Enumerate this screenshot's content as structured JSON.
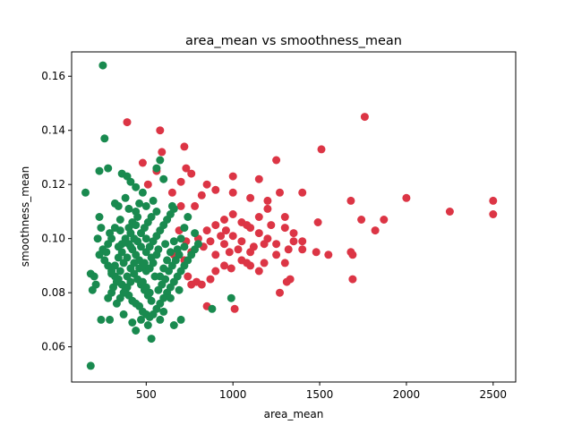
{
  "chart_data": {
    "type": "scatter",
    "title": "area_mean vs smoothness_mean",
    "xlabel": "area_mean",
    "ylabel": "smoothness_mean",
    "xlim": [
      70,
      2630
    ],
    "ylim": [
      0.047,
      0.169
    ],
    "xticks": [
      500,
      1000,
      1500,
      2000,
      2500
    ],
    "yticks": [
      0.06,
      0.08,
      0.1,
      0.12,
      0.14,
      0.16
    ],
    "xtick_labels": [
      "500",
      "1000",
      "1500",
      "2000",
      "2500"
    ],
    "ytick_labels": [
      "0.06",
      "0.08",
      "0.10",
      "0.12",
      "0.14",
      "0.16"
    ],
    "grid": false,
    "legend": "none",
    "series": [
      {
        "color": "#dc3545",
        "points": [
          [
            1760,
            0.145
          ],
          [
            1510,
            0.133
          ],
          [
            720,
            0.134
          ],
          [
            590,
            0.132
          ],
          [
            580,
            0.14
          ],
          [
            390,
            0.143
          ],
          [
            1250,
            0.129
          ],
          [
            480,
            0.128
          ],
          [
            560,
            0.125
          ],
          [
            730,
            0.126
          ],
          [
            760,
            0.124
          ],
          [
            1000,
            0.123
          ],
          [
            1150,
            0.122
          ],
          [
            510,
            0.12
          ],
          [
            700,
            0.121
          ],
          [
            850,
            0.12
          ],
          [
            900,
            0.118
          ],
          [
            1000,
            0.117
          ],
          [
            1100,
            0.115
          ],
          [
            1200,
            0.114
          ],
          [
            1270,
            0.117
          ],
          [
            1400,
            0.117
          ],
          [
            1680,
            0.114
          ],
          [
            2000,
            0.115
          ],
          [
            2500,
            0.114
          ],
          [
            2250,
            0.11
          ],
          [
            2500,
            0.109
          ],
          [
            1870,
            0.107
          ],
          [
            1740,
            0.107
          ],
          [
            1490,
            0.106
          ],
          [
            1820,
            0.103
          ],
          [
            1680,
            0.095
          ],
          [
            1690,
            0.094
          ],
          [
            1690,
            0.085
          ],
          [
            1550,
            0.094
          ],
          [
            1480,
            0.095
          ],
          [
            1400,
            0.096
          ],
          [
            1350,
            0.099
          ],
          [
            1300,
            0.091
          ],
          [
            1330,
            0.085
          ],
          [
            1310,
            0.084
          ],
          [
            1270,
            0.08
          ],
          [
            1150,
            0.088
          ],
          [
            1100,
            0.09
          ],
          [
            1050,
            0.092
          ],
          [
            990,
            0.089
          ],
          [
            950,
            0.09
          ],
          [
            900,
            0.088
          ],
          [
            870,
            0.085
          ],
          [
            820,
            0.083
          ],
          [
            850,
            0.075
          ],
          [
            1010,
            0.074
          ],
          [
            790,
            0.084
          ],
          [
            760,
            0.083
          ],
          [
            740,
            0.086
          ],
          [
            720,
            0.092
          ],
          [
            760,
            0.095
          ],
          [
            800,
            0.1
          ],
          [
            850,
            0.103
          ],
          [
            900,
            0.105
          ],
          [
            950,
            0.107
          ],
          [
            1000,
            0.109
          ],
          [
            1050,
            0.106
          ],
          [
            1100,
            0.104
          ],
          [
            1150,
            0.102
          ],
          [
            1200,
            0.1
          ],
          [
            1250,
            0.098
          ],
          [
            1300,
            0.104
          ],
          [
            1350,
            0.102
          ],
          [
            1400,
            0.099
          ],
          [
            1150,
            0.108
          ],
          [
            1200,
            0.111
          ],
          [
            1300,
            0.108
          ],
          [
            1050,
            0.099
          ],
          [
            1000,
            0.101
          ],
          [
            950,
            0.098
          ],
          [
            900,
            0.094
          ],
          [
            1100,
            0.095
          ],
          [
            1250,
            0.094
          ],
          [
            650,
            0.117
          ],
          [
            700,
            0.112
          ],
          [
            780,
            0.112
          ],
          [
            820,
            0.116
          ],
          [
            1080,
            0.105
          ],
          [
            1120,
            0.097
          ],
          [
            930,
            0.101
          ],
          [
            980,
            0.095
          ],
          [
            1180,
            0.091
          ],
          [
            870,
            0.099
          ],
          [
            1030,
            0.096
          ],
          [
            1220,
            0.105
          ],
          [
            1320,
            0.096
          ],
          [
            1180,
            0.098
          ],
          [
            1080,
            0.091
          ],
          [
            960,
            0.103
          ],
          [
            830,
            0.097
          ],
          [
            730,
            0.099
          ],
          [
            690,
            0.103
          ],
          [
            660,
            0.094
          ]
        ]
      },
      {
        "color": "#198a4f",
        "points": [
          [
            250,
            0.164
          ],
          [
            260,
            0.137
          ],
          [
            580,
            0.129
          ],
          [
            560,
            0.126
          ],
          [
            280,
            0.126
          ],
          [
            230,
            0.125
          ],
          [
            600,
            0.122
          ],
          [
            360,
            0.124
          ],
          [
            390,
            0.123
          ],
          [
            410,
            0.121
          ],
          [
            440,
            0.119
          ],
          [
            480,
            0.117
          ],
          [
            380,
            0.115
          ],
          [
            320,
            0.113
          ],
          [
            340,
            0.112
          ],
          [
            540,
            0.114
          ],
          [
            500,
            0.112
          ],
          [
            650,
            0.112
          ],
          [
            450,
            0.108
          ],
          [
            420,
            0.106
          ],
          [
            400,
            0.104
          ],
          [
            350,
            0.103
          ],
          [
            300,
            0.1
          ],
          [
            280,
            0.098
          ],
          [
            250,
            0.096
          ],
          [
            230,
            0.094
          ],
          [
            260,
            0.092
          ],
          [
            280,
            0.09
          ],
          [
            300,
            0.088
          ],
          [
            320,
            0.086
          ],
          [
            340,
            0.085
          ],
          [
            360,
            0.083
          ],
          [
            380,
            0.081
          ],
          [
            400,
            0.079
          ],
          [
            420,
            0.077
          ],
          [
            440,
            0.076
          ],
          [
            460,
            0.075
          ],
          [
            480,
            0.073
          ],
          [
            500,
            0.072
          ],
          [
            520,
            0.071
          ],
          [
            540,
            0.072
          ],
          [
            560,
            0.074
          ],
          [
            580,
            0.076
          ],
          [
            600,
            0.078
          ],
          [
            620,
            0.08
          ],
          [
            640,
            0.082
          ],
          [
            660,
            0.084
          ],
          [
            680,
            0.086
          ],
          [
            700,
            0.088
          ],
          [
            720,
            0.09
          ],
          [
            740,
            0.092
          ],
          [
            760,
            0.094
          ],
          [
            780,
            0.096
          ],
          [
            800,
            0.098
          ],
          [
            550,
            0.086
          ],
          [
            500,
            0.088
          ],
          [
            480,
            0.09
          ],
          [
            460,
            0.092
          ],
          [
            440,
            0.094
          ],
          [
            420,
            0.096
          ],
          [
            400,
            0.098
          ],
          [
            380,
            0.1
          ],
          [
            360,
            0.095
          ],
          [
            340,
            0.093
          ],
          [
            320,
            0.09
          ],
          [
            300,
            0.087
          ],
          [
            450,
            0.085
          ],
          [
            470,
            0.083
          ],
          [
            490,
            0.081
          ],
          [
            510,
            0.079
          ],
          [
            530,
            0.077
          ],
          [
            570,
            0.081
          ],
          [
            590,
            0.083
          ],
          [
            610,
            0.085
          ],
          [
            630,
            0.088
          ],
          [
            650,
            0.09
          ],
          [
            670,
            0.092
          ],
          [
            690,
            0.094
          ],
          [
            500,
            0.095
          ],
          [
            520,
            0.097
          ],
          [
            540,
            0.099
          ],
          [
            560,
            0.101
          ],
          [
            580,
            0.103
          ],
          [
            600,
            0.105
          ],
          [
            620,
            0.107
          ],
          [
            640,
            0.109
          ],
          [
            660,
            0.111
          ],
          [
            180,
            0.087
          ],
          [
            190,
            0.081
          ],
          [
            200,
            0.086
          ],
          [
            210,
            0.083
          ],
          [
            240,
            0.07
          ],
          [
            290,
            0.07
          ],
          [
            180,
            0.053
          ],
          [
            530,
            0.063
          ],
          [
            440,
            0.066
          ],
          [
            660,
            0.068
          ],
          [
            700,
            0.07
          ],
          [
            990,
            0.078
          ],
          [
            880,
            0.074
          ],
          [
            280,
            0.078
          ],
          [
            300,
            0.08
          ],
          [
            310,
            0.082
          ],
          [
            330,
            0.084
          ],
          [
            350,
            0.088
          ],
          [
            370,
            0.091
          ],
          [
            390,
            0.093
          ],
          [
            410,
            0.097
          ],
          [
            430,
            0.1
          ],
          [
            470,
            0.102
          ],
          [
            490,
            0.104
          ],
          [
            510,
            0.106
          ],
          [
            530,
            0.108
          ],
          [
            560,
            0.11
          ],
          [
            610,
            0.098
          ],
          [
            570,
            0.096
          ],
          [
            530,
            0.093
          ],
          [
            490,
            0.091
          ],
          [
            460,
            0.089
          ],
          [
            430,
            0.087
          ],
          [
            410,
            0.084
          ],
          [
            390,
            0.082
          ],
          [
            370,
            0.08
          ],
          [
            350,
            0.078
          ],
          [
            330,
            0.076
          ],
          [
            150,
            0.117
          ],
          [
            780,
            0.102
          ],
          [
            720,
            0.097
          ],
          [
            690,
            0.081
          ],
          [
            640,
            0.078
          ],
          [
            600,
            0.073
          ],
          [
            580,
            0.07
          ],
          [
            510,
            0.068
          ],
          [
            470,
            0.07
          ],
          [
            420,
            0.069
          ],
          [
            370,
            0.072
          ],
          [
            230,
            0.108
          ],
          [
            240,
            0.104
          ],
          [
            220,
            0.1
          ],
          [
            270,
            0.095
          ],
          [
            440,
            0.11
          ],
          [
            460,
            0.113
          ],
          [
            400,
            0.111
          ],
          [
            350,
            0.107
          ],
          [
            320,
            0.104
          ],
          [
            290,
            0.102
          ],
          [
            520,
            0.089
          ],
          [
            540,
            0.091
          ],
          [
            560,
            0.094
          ],
          [
            620,
            0.092
          ],
          [
            680,
            0.096
          ],
          [
            700,
            0.1
          ],
          [
            720,
            0.104
          ],
          [
            740,
            0.108
          ],
          [
            470,
            0.097
          ],
          [
            450,
            0.099
          ],
          [
            430,
            0.091
          ],
          [
            410,
            0.089
          ],
          [
            390,
            0.086
          ],
          [
            480,
            0.084
          ],
          [
            500,
            0.082
          ],
          [
            520,
            0.08
          ],
          [
            580,
            0.086
          ],
          [
            600,
            0.089
          ],
          [
            640,
            0.095
          ],
          [
            660,
            0.099
          ],
          [
            500,
            0.1
          ],
          [
            410,
            0.102
          ],
          [
            440,
            0.105
          ],
          [
            360,
            0.098
          ],
          [
            340,
            0.097
          ]
        ]
      }
    ]
  }
}
